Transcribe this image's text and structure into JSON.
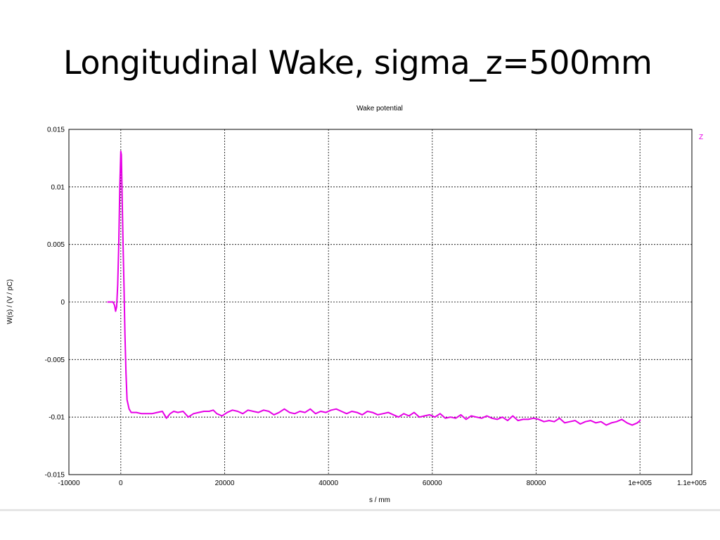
{
  "slide": {
    "title": "Longitudinal Wake, sigma_z=500mm"
  },
  "chart_data": {
    "type": "line",
    "title": "Wake potential",
    "xlabel": "s / mm",
    "ylabel": "W(s) / (V / pC)",
    "xlim": [
      -10000,
      110000
    ],
    "ylim": [
      -0.015,
      0.015
    ],
    "grid": true,
    "legend_position": "top-right",
    "x_ticks": [
      -10000,
      0,
      20000,
      40000,
      60000,
      80000,
      100000,
      110000
    ],
    "x_tick_labels": [
      "-10000",
      "0",
      "20000",
      "40000",
      "60000",
      "80000",
      "1e+005",
      "1.1e+005"
    ],
    "y_ticks": [
      0.015,
      0.01,
      0.005,
      0,
      -0.005,
      -0.01,
      -0.015
    ],
    "y_tick_labels": [
      "0.015",
      "0.01",
      "0.005",
      "0",
      "-0.005",
      "-0.01",
      "-0.015"
    ],
    "series": [
      {
        "name": "Z",
        "color": "#e600e6",
        "x": [
          -2500,
          -1500,
          -1200,
          -1000,
          -800,
          -600,
          -400,
          -200,
          0,
          100,
          200,
          300,
          450,
          600,
          800,
          1000,
          1200,
          1600,
          2000,
          3000,
          4000,
          5000,
          6000,
          7000,
          8000,
          8800,
          9500,
          10200,
          11000,
          12000,
          13000,
          14000,
          15000,
          16000,
          17000,
          17800,
          18500,
          19500,
          20500,
          21500,
          22500,
          23500,
          24500,
          25500,
          26500,
          27500,
          28500,
          29500,
          30500,
          31500,
          32500,
          33500,
          34500,
          35500,
          36500,
          37500,
          38500,
          39500,
          40500,
          41500,
          42500,
          43500,
          44500,
          45500,
          46500,
          47500,
          48500,
          49500,
          50500,
          51500,
          52500,
          53500,
          54500,
          55500,
          56500,
          57500,
          58500,
          59500,
          60500,
          61500,
          62500,
          63500,
          64500,
          65500,
          66500,
          67500,
          68500,
          69500,
          70500,
          71500,
          72500,
          73500,
          74500,
          75500,
          76500,
          77500,
          78500,
          79500,
          80500,
          81500,
          82500,
          83500,
          84500,
          85500,
          86500,
          87500,
          88500,
          89500,
          90500,
          91500,
          92500,
          93500,
          94500,
          95500,
          96500,
          97500,
          98500,
          99500,
          100000
        ],
        "y": [
          0,
          0,
          -0.0003,
          -0.0008,
          -0.0004,
          0.0015,
          0.005,
          0.01,
          0.0131,
          0.0128,
          0.0105,
          0.0082,
          0.0045,
          0.0015,
          -0.0028,
          -0.0062,
          -0.0085,
          -0.0093,
          -0.0096,
          -0.0096,
          -0.0097,
          -0.0097,
          -0.0097,
          -0.0096,
          -0.0095,
          -0.0101,
          -0.0097,
          -0.0095,
          -0.0096,
          -0.0095,
          -0.01,
          -0.0097,
          -0.0096,
          -0.0095,
          -0.0095,
          -0.0094,
          -0.0097,
          -0.0099,
          -0.0096,
          -0.0094,
          -0.0095,
          -0.0097,
          -0.0094,
          -0.0095,
          -0.0096,
          -0.0094,
          -0.0095,
          -0.0098,
          -0.0096,
          -0.0093,
          -0.0096,
          -0.0097,
          -0.0095,
          -0.0096,
          -0.0093,
          -0.0097,
          -0.0095,
          -0.0096,
          -0.0094,
          -0.0093,
          -0.0095,
          -0.0097,
          -0.0095,
          -0.0096,
          -0.0098,
          -0.0095,
          -0.0096,
          -0.0098,
          -0.0097,
          -0.0096,
          -0.0098,
          -0.01,
          -0.0097,
          -0.0099,
          -0.0096,
          -0.01,
          -0.0099,
          -0.0098,
          -0.01,
          -0.0097,
          -0.0101,
          -0.01,
          -0.0101,
          -0.0098,
          -0.0102,
          -0.0099,
          -0.01,
          -0.0101,
          -0.0099,
          -0.0101,
          -0.0102,
          -0.01,
          -0.0103,
          -0.0099,
          -0.0103,
          -0.0102,
          -0.0102,
          -0.0101,
          -0.0102,
          -0.0104,
          -0.0103,
          -0.0104,
          -0.0101,
          -0.0105,
          -0.0104,
          -0.0103,
          -0.0106,
          -0.0104,
          -0.0103,
          -0.0105,
          -0.0104,
          -0.0107,
          -0.0105,
          -0.0104,
          -0.0102,
          -0.0105,
          -0.0107,
          -0.0105,
          -0.0103
        ]
      }
    ]
  }
}
